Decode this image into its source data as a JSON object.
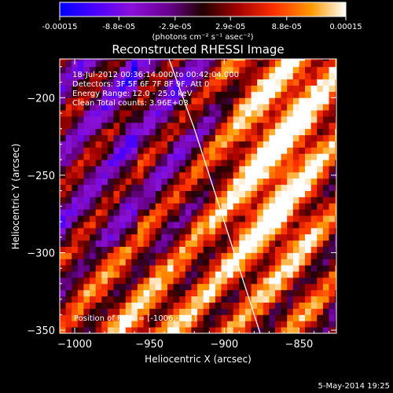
{
  "colorbar": {
    "tick_labels": [
      "-0.00015",
      "-8.8e-05",
      "-2.9e-05",
      "2.9e-05",
      "8.8e-05",
      "0.00015"
    ],
    "tick_values": [
      -0.00015,
      -8.8e-05,
      -2.9e-05,
      2.9e-05,
      8.8e-05,
      0.00015
    ],
    "min": -0.00015,
    "max": 0.00015,
    "unit_label": "(photons cm⁻² s⁻¹ asec⁻²)",
    "palette": [
      "#0000ff",
      "#5a00ff",
      "#8a00c8",
      "#600078",
      "#300000",
      "#b00000",
      "#ff3000",
      "#ff8000",
      "#ffd000",
      "#ffffff"
    ]
  },
  "chart_data": {
    "type": "heatmap",
    "title": "Reconstructed RHESSI Image",
    "xlabel": "Heliocentric X (arcsec)",
    "ylabel": "Heliocentric Y (arcsec)",
    "xlim": [
      -1010,
      -825
    ],
    "ylim": [
      -352,
      -175
    ],
    "xticks": [
      -1000,
      -950,
      -900,
      -850
    ],
    "yticks": [
      -200,
      -250,
      -300,
      -350
    ],
    "xtick_labels": [
      "−1000",
      "−950",
      "−900",
      "−850"
    ],
    "ytick_labels": [
      "−200",
      "−250",
      "−300",
      "−350"
    ],
    "pixel_size_arcsec": 4,
    "peak": [
      -1006,
      -221
    ],
    "limb_line": [
      [
        -937,
        -175
      ],
      [
        -920,
        -220
      ],
      [
        -905,
        -265
      ],
      [
        -890,
        -310
      ],
      [
        -876,
        -352
      ]
    ],
    "annotations": [
      "18-Jul-2012 00:36:14.000 to 00:42:04.000",
      "Detectors: 3F 5F 6F 7F 8F 9F, Att 0",
      "Energy Range: 12.0 - 25.0 keV",
      "Clean    Total counts: 3.96E+03"
    ],
    "peak_label": "Position of Peak = [-1006,-221]"
  },
  "footer": {
    "date": "5-May-2014 19:25"
  }
}
